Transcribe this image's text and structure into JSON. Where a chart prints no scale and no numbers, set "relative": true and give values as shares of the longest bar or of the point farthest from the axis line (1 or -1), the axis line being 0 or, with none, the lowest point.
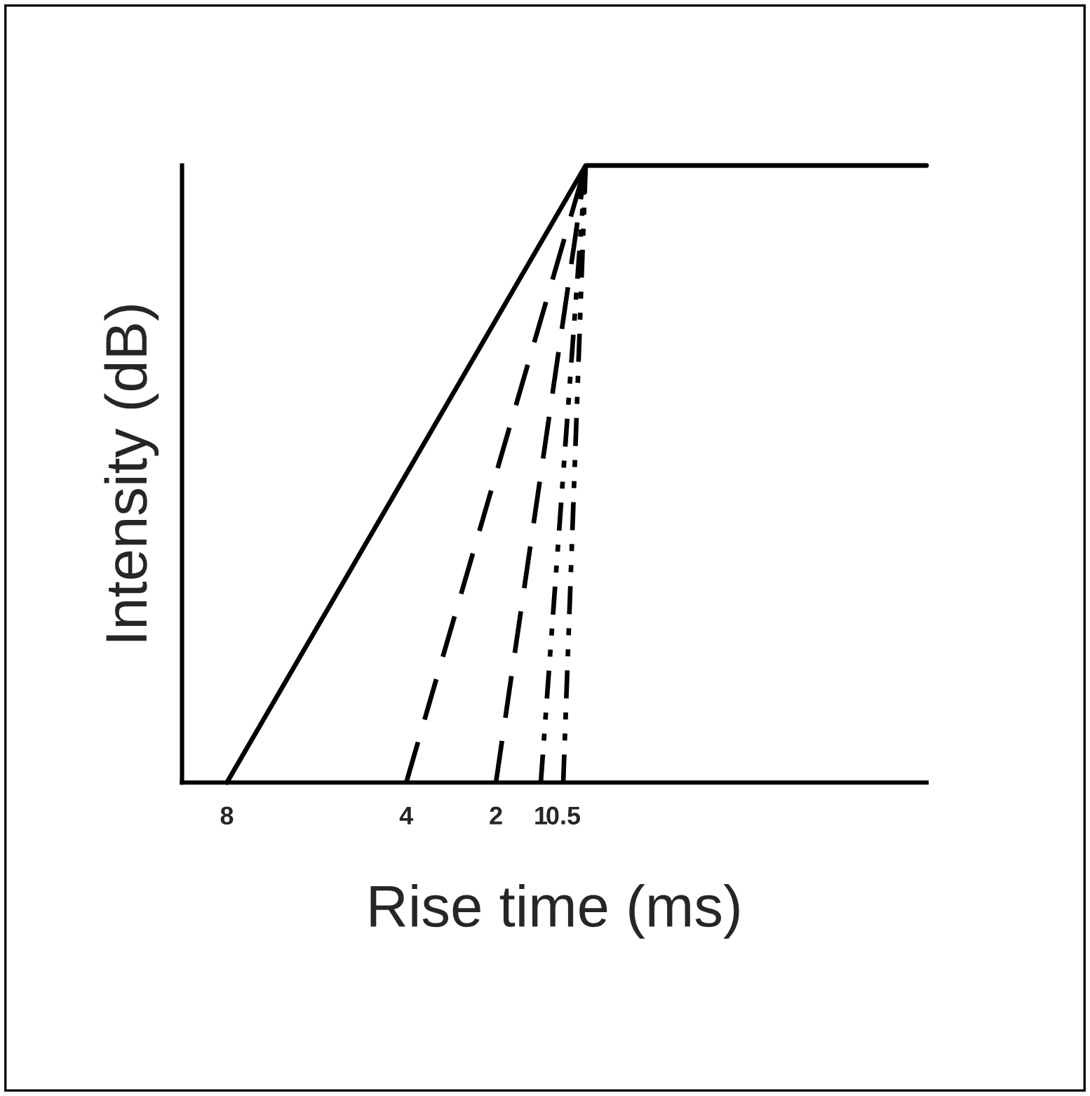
{
  "chart_data": {
    "type": "line",
    "relative": true,
    "xlabel": "Rise time (ms)",
    "ylabel": "Intensity (dB)",
    "xlim": [
      -9.0,
      7.6
    ],
    "xticks": [
      {
        "value": -8,
        "label": "8"
      },
      {
        "value": -4,
        "label": "4"
      },
      {
        "value": -2,
        "label": "2"
      },
      {
        "value": -1,
        "label": "1"
      },
      {
        "value": -0.5,
        "label": "0.5"
      }
    ],
    "tick_labels": "x",
    "grid": false,
    "legend": false,
    "marker": "none",
    "series": [
      {
        "color": "#000000",
        "line_style": "solid",
        "x": [
          -8,
          0,
          7.6
        ],
        "values": [
          0,
          1,
          1
        ]
      },
      {
        "color": "#000000",
        "line_style": "dashed",
        "x": [
          -4,
          0
        ],
        "values": [
          0,
          1
        ]
      },
      {
        "color": "#000000",
        "line_style": "dashed",
        "x": [
          -2,
          0
        ],
        "values": [
          0,
          1
        ]
      },
      {
        "color": "#000000",
        "line_style": "dotted",
        "x": [
          -1,
          0
        ],
        "values": [
          0,
          1
        ]
      },
      {
        "color": "#000000",
        "line_style": "dotted",
        "x": [
          -0.5,
          0
        ],
        "values": [
          0,
          1
        ]
      }
    ]
  }
}
